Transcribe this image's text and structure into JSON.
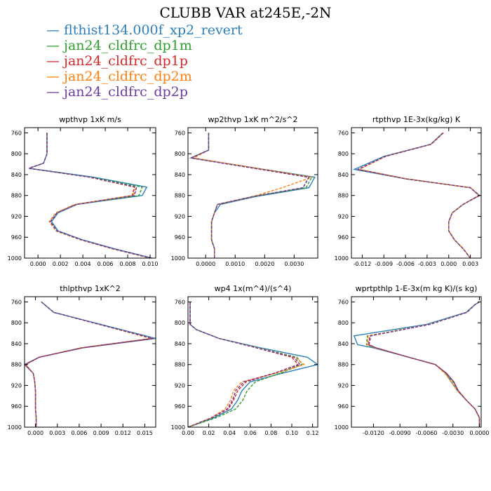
{
  "title": "CLUBB VAR at245E,-2N",
  "legend": [
    {
      "name": "flthist134.000f_xp2_revert",
      "color": "#2c7fb8",
      "dash": ""
    },
    {
      "name": "jan24_cldfrc_dp1m",
      "color": "#2ca02c",
      "dash": "4,2"
    },
    {
      "name": "jan24_cldfrc_dp1p",
      "color": "#d62728",
      "dash": "4,2"
    },
    {
      "name": "jan24_cldfrc_dp2m",
      "color": "#ff7f0e",
      "dash": "4,2"
    },
    {
      "name": "jan24_cldfrc_dp2p",
      "color": "#6a3d9a",
      "dash": "4,2"
    }
  ],
  "chart_data": [
    {
      "type": "line",
      "title": "wpthvp  1xK m/s",
      "xlim": [
        -0.0012,
        0.0105
      ],
      "ylim": [
        1000,
        750
      ],
      "xticks": [
        "0.000",
        "0.002",
        "0.004",
        "0.006",
        "0.008",
        "0.010"
      ],
      "xtick_values": [
        0.0,
        0.002,
        0.004,
        0.006,
        0.008,
        0.01
      ],
      "yticks": [
        "760",
        "800",
        "840",
        "880",
        "920",
        "960",
        "1000"
      ],
      "ytick_values": [
        760,
        800,
        840,
        880,
        920,
        960,
        1000
      ],
      "y": [
        760,
        780,
        800,
        818,
        828,
        845,
        864,
        880,
        897,
        913,
        930,
        948,
        965,
        982,
        1000
      ],
      "series": [
        {
          "name": "flthist134.000f_xp2_revert",
          "x": [
            0.0008,
            0.0008,
            0.0008,
            0.0005,
            -0.0008,
            0.005,
            0.0097,
            0.0093,
            0.0035,
            0.0018,
            0.0012,
            0.0018,
            0.004,
            0.0068,
            0.0102
          ]
        },
        {
          "name": "jan24_cldfrc_dp1m",
          "x": [
            0.0008,
            0.0008,
            0.0008,
            0.0005,
            -0.0008,
            0.0048,
            0.0093,
            0.009,
            0.0033,
            0.0016,
            0.001,
            0.0016,
            0.0038,
            0.0066,
            0.01
          ]
        },
        {
          "name": "jan24_cldfrc_dp1p",
          "x": [
            0.0008,
            0.0008,
            0.0008,
            0.0005,
            -0.0008,
            0.0046,
            0.0086,
            0.0084,
            0.0034,
            0.0017,
            0.0011,
            0.0017,
            0.0039,
            0.0067,
            0.0101
          ]
        },
        {
          "name": "jan24_cldfrc_dp2m",
          "x": [
            0.0008,
            0.0008,
            0.0008,
            0.0005,
            -0.0008,
            0.0046,
            0.0087,
            0.0085,
            0.0033,
            0.0016,
            0.001,
            0.0016,
            0.0038,
            0.0066,
            0.01
          ]
        },
        {
          "name": "jan24_cldfrc_dp2p",
          "x": [
            0.0008,
            0.0008,
            0.0008,
            0.0005,
            -0.0008,
            0.0047,
            0.0088,
            0.0086,
            0.0034,
            0.0017,
            0.0011,
            0.0017,
            0.0039,
            0.0067,
            0.0101
          ]
        }
      ]
    },
    {
      "type": "line",
      "title": "wp2thvp  1xK m^2/s^2",
      "xlim": [
        -0.0006,
        0.0038
      ],
      "ylim": [
        1000,
        750
      ],
      "xticks": [
        "0.0000",
        "0.0010",
        "0.0020",
        "0.0030"
      ],
      "xtick_values": [
        0.0,
        0.001,
        0.002,
        0.003
      ],
      "yticks": [
        "760",
        "800",
        "840",
        "880",
        "920",
        "960",
        "1000"
      ],
      "ytick_values": [
        760,
        800,
        840,
        880,
        920,
        960,
        1000
      ],
      "y": [
        760,
        780,
        793,
        808,
        845,
        865,
        882,
        897,
        913,
        930,
        948,
        965,
        982,
        1000
      ],
      "series": [
        {
          "name": "flthist134.000f_xp2_revert",
          "x": [
            0.0001,
            0.0001,
            0.0001,
            -0.0005,
            0.0037,
            0.0035,
            0.0017,
            0.0005,
            0.0003,
            0.0002,
            0.0002,
            0.0002,
            0.0003,
            0.0003
          ]
        },
        {
          "name": "jan24_cldfrc_dp1m",
          "x": [
            0.0001,
            0.0001,
            0.0001,
            -0.0005,
            0.0036,
            0.0034,
            0.0016,
            0.0004,
            0.0003,
            0.0002,
            0.0002,
            0.0002,
            0.0003,
            0.0003
          ]
        },
        {
          "name": "jan24_cldfrc_dp1p",
          "x": [
            0.0001,
            0.0001,
            0.0001,
            -0.0005,
            0.0035,
            0.0033,
            0.0016,
            0.0004,
            0.0003,
            0.0002,
            0.0002,
            0.0002,
            0.0003,
            0.0003
          ]
        },
        {
          "name": "jan24_cldfrc_dp2m",
          "x": [
            0.0001,
            0.0001,
            0.0001,
            -0.0004,
            0.0036,
            0.0026,
            0.0016,
            0.0004,
            0.0003,
            0.0002,
            0.0002,
            0.0002,
            0.0003,
            0.0003
          ]
        },
        {
          "name": "jan24_cldfrc_dp2p",
          "x": [
            0.0001,
            0.0001,
            0.0001,
            -0.0005,
            0.0035,
            0.0033,
            0.0016,
            0.0004,
            0.0003,
            0.0002,
            0.0002,
            0.0002,
            0.0003,
            0.0003
          ]
        }
      ]
    },
    {
      "type": "line",
      "title": "rtpthvp  1E-3x(kg/kg) K",
      "xlim": [
        -0.0135,
        0.0045
      ],
      "ylim": [
        1000,
        750
      ],
      "xticks": [
        "-0.012",
        "-0.009",
        "-0.006",
        "-0.003",
        "0.000",
        "0.003"
      ],
      "xtick_values": [
        -0.012,
        -0.009,
        -0.006,
        -0.003,
        0.0,
        0.003
      ],
      "yticks": [
        "760",
        "800",
        "840",
        "880",
        "920",
        "960",
        "1000"
      ],
      "ytick_values": [
        760,
        800,
        840,
        880,
        920,
        960,
        1000
      ],
      "y": [
        760,
        782,
        805,
        830,
        848,
        865,
        880,
        897,
        913,
        930,
        948,
        965,
        982,
        1000
      ],
      "series": [
        {
          "name": "flthist134.000f_xp2_revert",
          "x": [
            -0.0008,
            -0.0025,
            -0.009,
            -0.0131,
            -0.006,
            0.003,
            0.0043,
            0.002,
            0.0005,
            0.0,
            0.0,
            0.0008,
            0.002,
            0.003
          ]
        },
        {
          "name": "jan24_cldfrc_dp1m",
          "x": [
            -0.0008,
            -0.0025,
            -0.0088,
            -0.0125,
            -0.006,
            0.003,
            0.0042,
            0.002,
            0.0005,
            0.0,
            0.0,
            0.0008,
            0.002,
            0.003
          ]
        },
        {
          "name": "jan24_cldfrc_dp1p",
          "x": [
            -0.0008,
            -0.0025,
            -0.0088,
            -0.0126,
            -0.006,
            0.003,
            0.0042,
            0.002,
            0.0005,
            0.0,
            0.0,
            0.0008,
            0.002,
            0.003
          ]
        },
        {
          "name": "jan24_cldfrc_dp2m",
          "x": [
            -0.0007,
            -0.0024,
            -0.0087,
            -0.0124,
            -0.0058,
            0.003,
            0.0042,
            0.002,
            0.0005,
            0.0,
            0.0,
            0.0008,
            0.002,
            0.003
          ]
        },
        {
          "name": "jan24_cldfrc_dp2p",
          "x": [
            -0.0008,
            -0.0025,
            -0.0088,
            -0.0126,
            -0.006,
            0.003,
            0.0042,
            0.002,
            0.0005,
            0.0,
            0.0,
            0.0008,
            0.002,
            0.003
          ]
        }
      ]
    },
    {
      "type": "line",
      "title": "thlpthvp  1xK^2",
      "xlim": [
        -0.0015,
        0.0165
      ],
      "ylim": [
        1000,
        750
      ],
      "xticks": [
        "0.000",
        "0.003",
        "0.006",
        "0.009",
        "0.012",
        "0.015"
      ],
      "xtick_values": [
        0.0,
        0.003,
        0.006,
        0.009,
        0.012,
        0.015
      ],
      "yticks": [
        "760",
        "800",
        "840",
        "880",
        "920",
        "960",
        "1000"
      ],
      "ytick_values": [
        760,
        800,
        840,
        880,
        920,
        960,
        1000
      ],
      "y": [
        760,
        780,
        805,
        830,
        848,
        866,
        880,
        897,
        913,
        930,
        948,
        965,
        982,
        1000
      ],
      "series": [
        {
          "name": "flthist134.000f_xp2_revert",
          "x": [
            0.0008,
            0.0025,
            0.0095,
            0.0165,
            0.0065,
            0.0005,
            -0.0015,
            -0.0003,
            -0.0001,
            0.0,
            0.0,
            0.0,
            0.0001,
            0.0001
          ]
        },
        {
          "name": "jan24_cldfrc_dp1m",
          "x": [
            0.0008,
            0.0025,
            0.0093,
            0.016,
            0.0063,
            0.0005,
            -0.0014,
            -0.0003,
            -0.0001,
            0.0,
            0.0,
            0.0,
            0.0001,
            0.0001
          ]
        },
        {
          "name": "jan24_cldfrc_dp1p",
          "x": [
            0.0008,
            0.0025,
            0.0093,
            0.0162,
            0.0064,
            0.0005,
            -0.0014,
            -0.0003,
            -0.0001,
            0.0,
            0.0,
            0.0,
            0.0001,
            0.0001
          ]
        },
        {
          "name": "jan24_cldfrc_dp2m",
          "x": [
            0.0008,
            0.0025,
            0.0092,
            0.0158,
            0.0062,
            0.0005,
            -0.0013,
            -0.0003,
            -0.0001,
            0.0,
            0.0,
            0.0,
            0.0001,
            0.0001
          ]
        },
        {
          "name": "jan24_cldfrc_dp2p",
          "x": [
            0.0008,
            0.0025,
            0.0093,
            0.0161,
            0.0064,
            0.0005,
            -0.0014,
            -0.0003,
            -0.0001,
            0.0,
            0.0,
            0.0,
            0.0001,
            0.0001
          ]
        }
      ]
    },
    {
      "type": "line",
      "title": "wp4  1x(m^4)/(s^4)",
      "xlim": [
        0.0,
        0.125
      ],
      "ylim": [
        1000,
        750
      ],
      "xticks": [
        "0.00",
        "0.02",
        "0.04",
        "0.06",
        "0.08",
        "0.10",
        "0.12"
      ],
      "xtick_values": [
        0.0,
        0.02,
        0.04,
        0.06,
        0.08,
        0.1,
        0.12
      ],
      "yticks": [
        "760",
        "800",
        "840",
        "880",
        "920",
        "960",
        "1000"
      ],
      "ytick_values": [
        760,
        800,
        840,
        880,
        920,
        960,
        1000
      ],
      "y": [
        760,
        790,
        803,
        813,
        830,
        848,
        866,
        880,
        897,
        913,
        930,
        948,
        965,
        982,
        1000
      ],
      "series": [
        {
          "name": "flthist134.000f_xp2_revert",
          "x": [
            0.002,
            0.002,
            0.002,
            0.008,
            0.03,
            0.07,
            0.115,
            0.125,
            0.09,
            0.06,
            0.052,
            0.048,
            0.042,
            0.025,
            0.0
          ]
        },
        {
          "name": "jan24_cldfrc_dp1m",
          "x": [
            0.002,
            0.002,
            0.002,
            0.008,
            0.03,
            0.068,
            0.105,
            0.11,
            0.088,
            0.065,
            0.057,
            0.053,
            0.046,
            0.027,
            0.0
          ]
        },
        {
          "name": "jan24_cldfrc_dp1p",
          "x": [
            0.002,
            0.002,
            0.002,
            0.008,
            0.03,
            0.066,
            0.1,
            0.106,
            0.083,
            0.056,
            0.048,
            0.044,
            0.039,
            0.023,
            0.0
          ]
        },
        {
          "name": "jan24_cldfrc_dp2m",
          "x": [
            0.002,
            0.002,
            0.002,
            0.008,
            0.03,
            0.067,
            0.103,
            0.112,
            0.084,
            0.052,
            0.044,
            0.041,
            0.036,
            0.022,
            0.0
          ]
        },
        {
          "name": "jan24_cldfrc_dp2p",
          "x": [
            0.002,
            0.002,
            0.002,
            0.008,
            0.03,
            0.066,
            0.102,
            0.108,
            0.082,
            0.054,
            0.046,
            0.043,
            0.038,
            0.023,
            0.0
          ]
        }
      ]
    },
    {
      "type": "line",
      "title": "wprtpthlp  1-E-3x(m kg K)/(s kg)",
      "xlim": [
        -0.0145,
        0.0002
      ],
      "ylim": [
        1000,
        750
      ],
      "xticks": [
        "-0.0120",
        "-0.0090",
        "-0.0060",
        "-0.0030",
        "0.0000"
      ],
      "xtick_values": [
        -0.012,
        -0.009,
        -0.006,
        -0.003,
        0.0
      ],
      "yticks": [
        "760",
        "800",
        "840",
        "880",
        "920",
        "960",
        "1000"
      ],
      "ytick_values": [
        760,
        800,
        840,
        880,
        920,
        960,
        1000
      ],
      "y": [
        760,
        765,
        780,
        803,
        825,
        842,
        848,
        866,
        880,
        897,
        913,
        930,
        948,
        965,
        982,
        1000
      ],
      "series": [
        {
          "name": "flthist134.000f_xp2_revert",
          "x": [
            0.0,
            -0.0005,
            -0.0015,
            -0.006,
            -0.0142,
            -0.0138,
            -0.012,
            -0.008,
            -0.005,
            -0.0038,
            -0.0032,
            -0.0025,
            -0.0015,
            -0.0005,
            0.0,
            0.0
          ]
        },
        {
          "name": "jan24_cldfrc_dp1m",
          "x": [
            0.0,
            -0.0005,
            -0.0014,
            -0.0057,
            -0.0127,
            -0.0128,
            -0.0118,
            -0.008,
            -0.005,
            -0.0038,
            -0.003,
            -0.0024,
            -0.0015,
            -0.0005,
            0.0,
            0.0
          ]
        },
        {
          "name": "jan24_cldfrc_dp1p",
          "x": [
            0.0,
            -0.0005,
            -0.0014,
            -0.0056,
            -0.0124,
            -0.0126,
            -0.0117,
            -0.008,
            -0.005,
            -0.0037,
            -0.0029,
            -0.0024,
            -0.0015,
            -0.0005,
            0.0,
            0.0
          ]
        },
        {
          "name": "jan24_cldfrc_dp2m",
          "x": [
            0.0,
            -0.0005,
            -0.0014,
            -0.0057,
            -0.0126,
            -0.0127,
            -0.0118,
            -0.008,
            -0.005,
            -0.0039,
            -0.0032,
            -0.0025,
            -0.0015,
            -0.0005,
            0.0,
            0.0
          ]
        },
        {
          "name": "jan24_cldfrc_dp2p",
          "x": [
            0.0,
            -0.0005,
            -0.0014,
            -0.0056,
            -0.0123,
            -0.0125,
            -0.0117,
            -0.008,
            -0.005,
            -0.0037,
            -0.0029,
            -0.0024,
            -0.0015,
            -0.0005,
            0.0,
            0.0
          ]
        }
      ]
    }
  ]
}
